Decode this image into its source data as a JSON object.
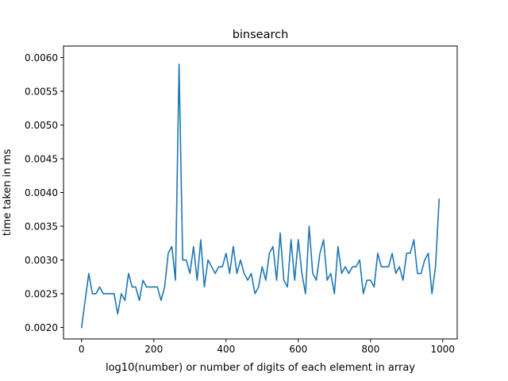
{
  "chart_data": {
    "type": "line",
    "title": "binsearch",
    "xlabel": "log10(number) or number of digits of each element in array",
    "ylabel": "time taken in ms",
    "xlim": [
      -50,
      1040
    ],
    "ylim": [
      0.00183,
      0.00617
    ],
    "xticks": [
      0,
      200,
      400,
      600,
      800,
      1000
    ],
    "xtick_labels": [
      "0",
      "200",
      "400",
      "600",
      "800",
      "1000"
    ],
    "yticks": [
      0.002,
      0.0025,
      0.003,
      0.0035,
      0.004,
      0.0045,
      0.005,
      0.0055,
      0.006
    ],
    "ytick_labels": [
      "0.0020",
      "0.0025",
      "0.0030",
      "0.0035",
      "0.0040",
      "0.0045",
      "0.0050",
      "0.0055",
      "0.0060"
    ],
    "grid": false,
    "series": [
      {
        "color": "#1f77b4",
        "x": [
          0,
          10,
          20,
          30,
          40,
          50,
          60,
          70,
          80,
          90,
          100,
          110,
          120,
          130,
          140,
          150,
          160,
          170,
          180,
          190,
          200,
          210,
          220,
          230,
          240,
          250,
          260,
          270,
          280,
          290,
          300,
          310,
          320,
          330,
          340,
          350,
          360,
          370,
          380,
          390,
          400,
          410,
          420,
          430,
          440,
          450,
          460,
          470,
          480,
          490,
          500,
          510,
          520,
          530,
          540,
          550,
          560,
          570,
          580,
          590,
          600,
          610,
          620,
          630,
          640,
          650,
          660,
          670,
          680,
          690,
          700,
          710,
          720,
          730,
          740,
          750,
          760,
          770,
          780,
          790,
          800,
          810,
          820,
          830,
          840,
          850,
          860,
          870,
          880,
          890,
          900,
          910,
          920,
          930,
          940,
          950,
          960,
          970,
          980,
          990
        ],
        "y": [
          0.002,
          0.0024,
          0.0028,
          0.0025,
          0.0025,
          0.0026,
          0.0025,
          0.0025,
          0.0025,
          0.0025,
          0.0022,
          0.0025,
          0.0024,
          0.0028,
          0.0026,
          0.0026,
          0.0024,
          0.0027,
          0.0026,
          0.0026,
          0.0026,
          0.0026,
          0.0024,
          0.0026,
          0.0031,
          0.0032,
          0.0027,
          0.0059,
          0.003,
          0.003,
          0.0028,
          0.0032,
          0.0027,
          0.0033,
          0.0026,
          0.003,
          0.0029,
          0.0028,
          0.0029,
          0.0029,
          0.0031,
          0.0028,
          0.0032,
          0.0028,
          0.003,
          0.0028,
          0.0027,
          0.0028,
          0.0025,
          0.0026,
          0.0029,
          0.0027,
          0.0031,
          0.0032,
          0.0027,
          0.0034,
          0.0027,
          0.0026,
          0.0033,
          0.0027,
          0.0033,
          0.0028,
          0.0025,
          0.0035,
          0.0028,
          0.0027,
          0.0031,
          0.0033,
          0.0027,
          0.0028,
          0.0025,
          0.0032,
          0.0028,
          0.0029,
          0.0028,
          0.0029,
          0.0029,
          0.003,
          0.0025,
          0.0027,
          0.0027,
          0.0026,
          0.0031,
          0.0029,
          0.0029,
          0.0029,
          0.0031,
          0.0028,
          0.0029,
          0.0027,
          0.0031,
          0.0031,
          0.0033,
          0.0028,
          0.0028,
          0.003,
          0.0031,
          0.0025,
          0.0029,
          0.0039
        ]
      }
    ]
  }
}
